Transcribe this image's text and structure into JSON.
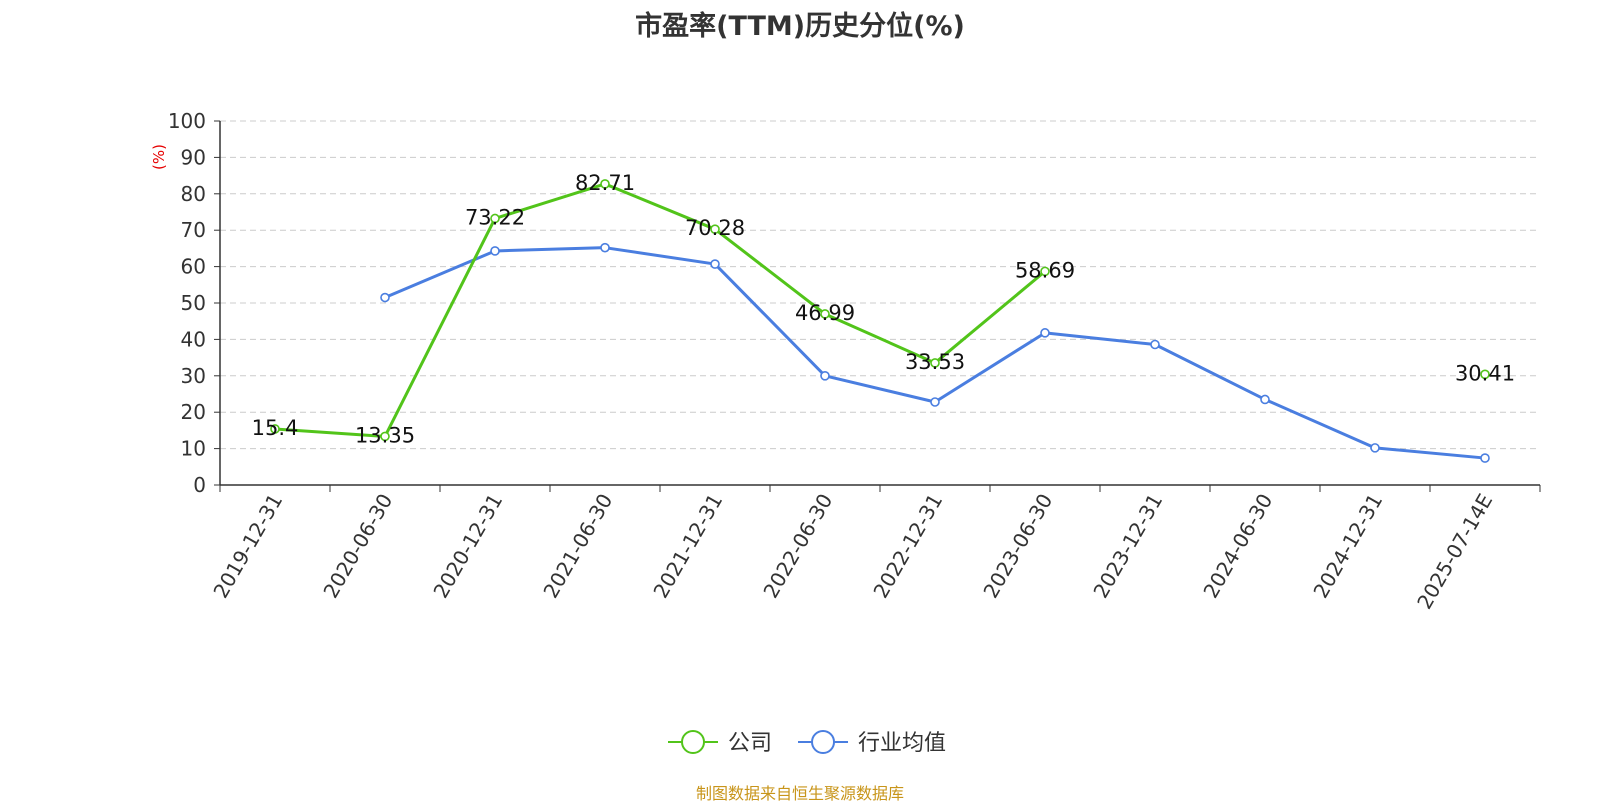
{
  "chart_data": {
    "type": "line",
    "title": "市盈率(TTM)历史分位(%)",
    "ylabel": "(%)",
    "ylim": [
      0,
      100
    ],
    "y_ticks": [
      0,
      10,
      20,
      30,
      40,
      50,
      60,
      70,
      80,
      90,
      100
    ],
    "grid": true,
    "legend_position": "bottom",
    "categories": [
      "2019-12-31",
      "2020-06-30",
      "2020-12-31",
      "2021-06-30",
      "2021-12-31",
      "2022-06-30",
      "2022-12-31",
      "2023-06-30",
      "2023-12-31",
      "2024-06-30",
      "2024-12-31",
      "2025-07-14E"
    ],
    "series": [
      {
        "name": "公司",
        "color": "#52c41a",
        "values": [
          15.4,
          13.35,
          73.22,
          82.71,
          70.28,
          46.99,
          33.53,
          58.69,
          null,
          null,
          null,
          30.41
        ],
        "labels": [
          "15.4",
          "13.35",
          "73.22",
          "82.71",
          "70.28",
          "46.99",
          "33.53",
          "58.69",
          null,
          null,
          null,
          "30.41"
        ]
      },
      {
        "name": "行业均值",
        "color": "#4a7ee0",
        "values": [
          null,
          51.5,
          64.3,
          65.2,
          60.7,
          30.0,
          22.8,
          41.8,
          38.6,
          23.5,
          10.2,
          7.4
        ]
      }
    ]
  },
  "footer": {
    "source": "制图数据来自恒生聚源数据库"
  },
  "colors": {
    "axis": "#333333",
    "grid": "#cccccc",
    "ylabel": "#e60000"
  }
}
